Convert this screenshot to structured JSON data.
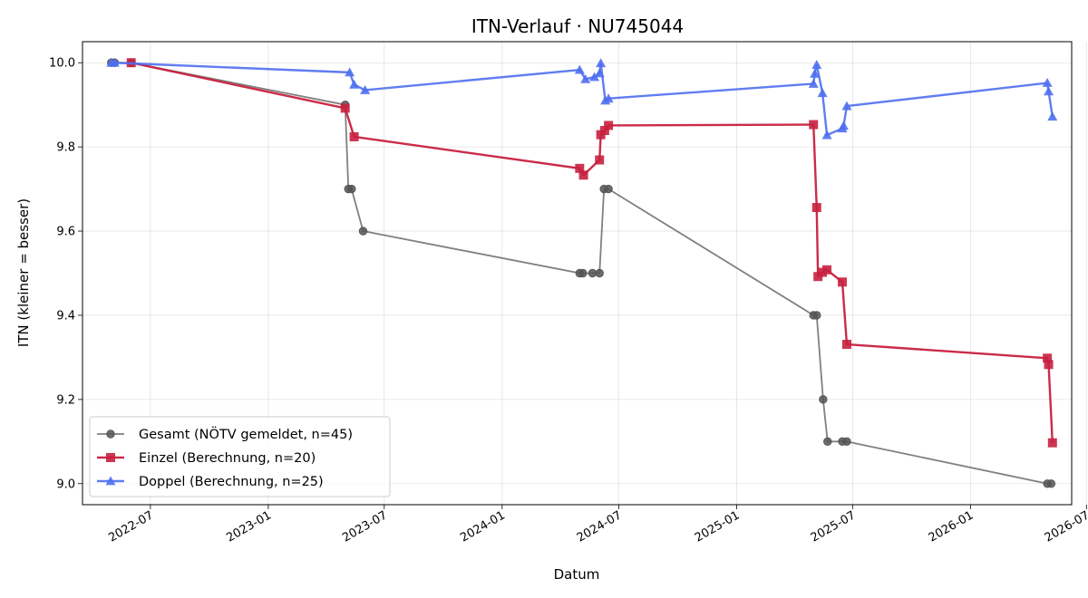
{
  "chart_data": {
    "type": "line",
    "title": "ITN-Verlauf · NU745044",
    "xlabel": "Datum",
    "ylabel": "ITN  (kleiner = besser)",
    "xlim": [
      "2022-03-17",
      "2026-06-08"
    ],
    "ylim": [
      8.95,
      10.05
    ],
    "yticks": [
      9.0,
      9.2,
      9.4,
      9.6,
      9.8,
      10.0
    ],
    "ytick_labels": [
      "9.0",
      "9.2",
      "9.4",
      "9.6",
      "9.8",
      "10.0"
    ],
    "xticks": [
      "2022-07-01",
      "2023-01-01",
      "2023-07-01",
      "2024-01-01",
      "2024-07-01",
      "2025-01-01",
      "2025-07-01",
      "2026-01-01",
      "2026-07-01"
    ],
    "xtick_labels": [
      "2022-07",
      "2023-01",
      "2023-07",
      "2024-01",
      "2024-07",
      "2025-01",
      "2025-07",
      "2026-01",
      "2026-07"
    ],
    "grid": true,
    "legend_position": "lower-left",
    "series": [
      {
        "name": "Gesamt (NÖTV gemeldet, n=45)",
        "color": "#555555",
        "marker": "circle",
        "points": [
          [
            "2022-05-01",
            10.0
          ],
          [
            "2022-05-06",
            10.0
          ],
          [
            "2022-06-01",
            10.0
          ],
          [
            "2023-05-01",
            9.9
          ],
          [
            "2023-05-06",
            9.7
          ],
          [
            "2023-05-11",
            9.7
          ],
          [
            "2023-05-29",
            9.6
          ],
          [
            "2024-05-01",
            9.5
          ],
          [
            "2024-05-06",
            9.5
          ],
          [
            "2024-05-21",
            9.5
          ],
          [
            "2024-06-01",
            9.5
          ],
          [
            "2024-06-08",
            9.7
          ],
          [
            "2024-06-15",
            9.7
          ],
          [
            "2025-05-01",
            9.4
          ],
          [
            "2025-05-06",
            9.4
          ],
          [
            "2025-05-16",
            9.2
          ],
          [
            "2025-05-23",
            9.1
          ],
          [
            "2025-06-15",
            9.1
          ],
          [
            "2025-06-22",
            9.1
          ],
          [
            "2026-05-01",
            9.0
          ],
          [
            "2026-05-07",
            9.0
          ]
        ]
      },
      {
        "name": "Einzel (Berechnung, n=20)",
        "color": "#c8203f",
        "marker": "square",
        "points": [
          [
            "2022-06-01",
            10.0
          ],
          [
            "2023-05-01",
            9.892
          ],
          [
            "2023-05-15",
            9.824
          ],
          [
            "2024-05-01",
            9.749
          ],
          [
            "2024-05-07",
            9.733
          ],
          [
            "2024-06-01",
            9.769
          ],
          [
            "2024-06-03",
            9.829
          ],
          [
            "2024-06-09",
            9.839
          ],
          [
            "2024-06-15",
            9.851
          ],
          [
            "2025-05-01",
            9.853
          ],
          [
            "2025-05-06",
            9.656
          ],
          [
            "2025-05-08",
            9.492
          ],
          [
            "2025-05-15",
            9.502
          ],
          [
            "2025-05-22",
            9.508
          ],
          [
            "2025-06-15",
            9.479
          ],
          [
            "2025-06-22",
            9.331
          ],
          [
            "2026-05-01",
            9.298
          ],
          [
            "2026-05-03",
            9.283
          ],
          [
            "2026-05-09",
            9.097
          ]
        ]
      },
      {
        "name": "Doppel (Berechnung, n=25)",
        "color": "#4f6ff0",
        "marker": "triangle",
        "points": [
          [
            "2022-05-01",
            10.0
          ],
          [
            "2022-05-06",
            10.0
          ],
          [
            "2023-05-08",
            9.977
          ],
          [
            "2023-05-15",
            9.948
          ],
          [
            "2023-06-01",
            9.935
          ],
          [
            "2024-05-01",
            9.983
          ],
          [
            "2024-05-10",
            9.961
          ],
          [
            "2024-05-24",
            9.966
          ],
          [
            "2024-06-01",
            9.975
          ],
          [
            "2024-06-03",
            9.999
          ],
          [
            "2024-06-10",
            9.91
          ],
          [
            "2024-06-15",
            9.915
          ],
          [
            "2025-05-01",
            9.95
          ],
          [
            "2025-05-03",
            9.974
          ],
          [
            "2025-05-06",
            9.995
          ],
          [
            "2025-05-15",
            9.928
          ],
          [
            "2025-05-22",
            9.828
          ],
          [
            "2025-06-15",
            9.844
          ],
          [
            "2025-06-17",
            9.85
          ],
          [
            "2025-06-22",
            9.897
          ],
          [
            "2026-05-01",
            9.952
          ],
          [
            "2026-05-03",
            9.932
          ],
          [
            "2026-05-09",
            9.872
          ]
        ]
      }
    ]
  }
}
